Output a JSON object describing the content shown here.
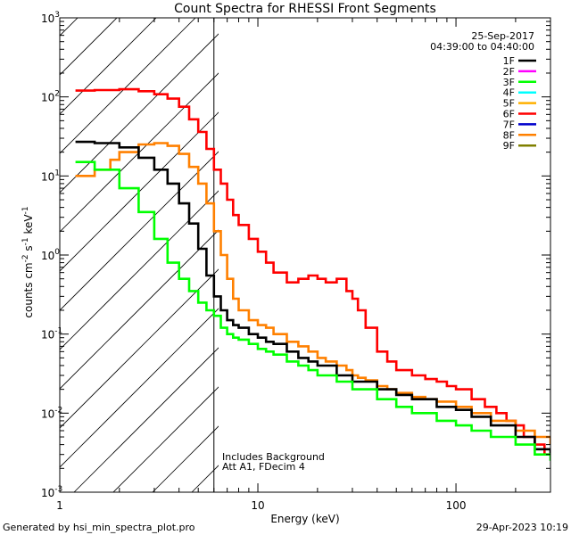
{
  "chart_data": {
    "type": "line",
    "title": "Count Spectra for RHESSI Front Segments",
    "xlabel": "Energy (keV)",
    "ylabel": "counts cm-2 s-1 keV-1",
    "xscale": "log",
    "yscale": "log",
    "xlim": [
      1,
      300
    ],
    "ylim": [
      0.001,
      1000
    ],
    "x_ticks": [
      {
        "value": 1,
        "label": "1"
      },
      {
        "value": 10,
        "label": "10"
      },
      {
        "value": 100,
        "label": "100"
      }
    ],
    "y_ticks": [
      {
        "value": 0.001,
        "base": "10",
        "exp": "-3"
      },
      {
        "value": 0.01,
        "base": "10",
        "exp": "-2"
      },
      {
        "value": 0.1,
        "base": "10",
        "exp": "-1"
      },
      {
        "value": 1,
        "base": "10",
        "exp": "0"
      },
      {
        "value": 10,
        "base": "10",
        "exp": "1"
      },
      {
        "value": 100,
        "base": "10",
        "exp": "2"
      },
      {
        "value": 1000,
        "base": "10",
        "exp": "3"
      }
    ],
    "hatched_region_xmax": 6,
    "date": "25-Sep-2017",
    "time_range": "04:39:00 to 04:40:00",
    "notes": [
      "Includes Background",
      "Att A1, FDecim  4"
    ],
    "footer_left": "Generated by hsi_min_spectra_plot.pro",
    "footer_right": "29-Apr-2023 10:19",
    "legend": [
      {
        "label": "1F",
        "color": "#000000"
      },
      {
        "label": "2F",
        "color": "#ff00ff"
      },
      {
        "label": "3F",
        "color": "#00ff00"
      },
      {
        "label": "4F",
        "color": "#00ffff"
      },
      {
        "label": "5F",
        "color": "#ffb000"
      },
      {
        "label": "6F",
        "color": "#ff0000"
      },
      {
        "label": "7F",
        "color": "#0000cc"
      },
      {
        "label": "8F",
        "color": "#ff8000"
      },
      {
        "label": "9F",
        "color": "#808000"
      }
    ],
    "series": [
      {
        "name": "6F",
        "color": "#ff0000",
        "x": [
          1.2,
          1.5,
          2,
          2.5,
          3,
          3.5,
          4,
          4.5,
          5,
          5.5,
          6,
          6.5,
          7,
          7.5,
          8,
          9,
          10,
          11,
          12,
          14,
          16,
          18,
          20,
          22,
          25,
          28,
          30,
          32,
          35,
          40,
          45,
          50,
          60,
          70,
          80,
          90,
          100,
          120,
          140,
          160,
          180,
          200,
          220,
          250,
          280,
          300
        ],
        "values": [
          120,
          122,
          125,
          118,
          108,
          95,
          75,
          52,
          36,
          22,
          12,
          8,
          5,
          3.2,
          2.4,
          1.6,
          1.1,
          0.8,
          0.6,
          0.45,
          0.5,
          0.55,
          0.5,
          0.45,
          0.5,
          0.35,
          0.28,
          0.2,
          0.12,
          0.06,
          0.045,
          0.035,
          0.03,
          0.027,
          0.025,
          0.022,
          0.02,
          0.015,
          0.012,
          0.01,
          0.008,
          0.007,
          0.005,
          0.004,
          0.003,
          0.003
        ]
      },
      {
        "name": "8F",
        "color": "#ff8000",
        "x": [
          1.2,
          1.5,
          1.8,
          2,
          2.5,
          3,
          3.5,
          4,
          4.5,
          5,
          5.5,
          6,
          6.5,
          7,
          7.5,
          8,
          9,
          10,
          11,
          12,
          14,
          16,
          18,
          20,
          22,
          25,
          28,
          30,
          32,
          35,
          40,
          45,
          50,
          60,
          70,
          80,
          100,
          120,
          150,
          200,
          250,
          300
        ],
        "values": [
          10,
          12,
          16,
          20,
          25,
          26,
          24,
          19,
          13,
          8,
          4.5,
          2,
          1,
          0.5,
          0.28,
          0.2,
          0.15,
          0.13,
          0.12,
          0.1,
          0.08,
          0.07,
          0.06,
          0.05,
          0.045,
          0.04,
          0.035,
          0.03,
          0.028,
          0.026,
          0.022,
          0.02,
          0.018,
          0.016,
          0.015,
          0.014,
          0.012,
          0.01,
          0.008,
          0.006,
          0.005,
          0.004
        ]
      },
      {
        "name": "1F",
        "color": "#000000",
        "x": [
          1.2,
          1.5,
          2,
          2.5,
          3,
          3.5,
          4,
          4.5,
          5,
          5.5,
          6,
          6.5,
          7,
          7.5,
          8,
          9,
          10,
          11,
          12,
          14,
          16,
          18,
          20,
          25,
          30,
          40,
          50,
          60,
          80,
          100,
          120,
          150,
          200,
          250,
          300
        ],
        "values": [
          27,
          26,
          23,
          17,
          12,
          8,
          4.5,
          2.5,
          1.2,
          0.55,
          0.3,
          0.2,
          0.15,
          0.13,
          0.12,
          0.1,
          0.09,
          0.08,
          0.075,
          0.06,
          0.05,
          0.045,
          0.04,
          0.03,
          0.025,
          0.02,
          0.017,
          0.015,
          0.012,
          0.011,
          0.009,
          0.007,
          0.005,
          0.0035,
          0.003
        ]
      },
      {
        "name": "3F",
        "color": "#00ff00",
        "x": [
          1.2,
          1.5,
          2,
          2.5,
          3,
          3.5,
          4,
          4.5,
          5,
          5.5,
          6,
          6.5,
          7,
          7.5,
          8,
          9,
          10,
          11,
          12,
          14,
          16,
          18,
          20,
          25,
          30,
          40,
          50,
          60,
          80,
          100,
          120,
          150,
          200,
          250,
          300
        ],
        "values": [
          15,
          12,
          7,
          3.5,
          1.6,
          0.8,
          0.5,
          0.35,
          0.25,
          0.2,
          0.17,
          0.12,
          0.1,
          0.09,
          0.085,
          0.075,
          0.065,
          0.06,
          0.055,
          0.045,
          0.04,
          0.035,
          0.03,
          0.025,
          0.02,
          0.015,
          0.012,
          0.01,
          0.008,
          0.007,
          0.006,
          0.005,
          0.004,
          0.003,
          0.0025
        ]
      }
    ]
  }
}
